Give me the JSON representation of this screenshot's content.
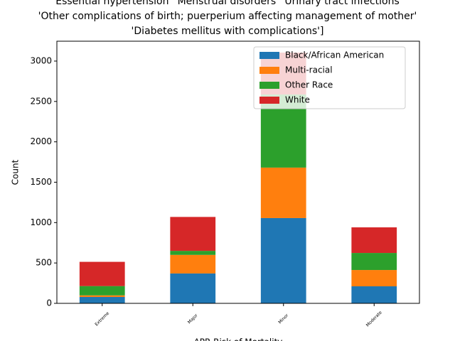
{
  "chart_data": {
    "type": "stacked_bar",
    "title": [
      "'Essential hypertension' 'Menstrual disorders' 'Urinary tract infections'",
      "'Other complications of birth; puerperium affecting management of mother'",
      "'Diabetes mellitus with complications']"
    ],
    "xlabel": "APR Risk of Mortality",
    "ylabel": "Count",
    "categories": [
      "Extreme",
      "Major",
      "Minor",
      "Moderate"
    ],
    "series": [
      {
        "name": "Black/African American",
        "color": "#1f77b4",
        "values": [
          79,
          370,
          1056,
          211
        ]
      },
      {
        "name": "Multi-racial",
        "color": "#ff7f0e",
        "values": [
          20,
          230,
          625,
          202
        ]
      },
      {
        "name": "Other Race",
        "color": "#2ca02c",
        "values": [
          115,
          50,
          905,
          211
        ]
      },
      {
        "name": "White",
        "color": "#d62728",
        "values": [
          300,
          420,
          519,
          317
        ]
      }
    ],
    "ylim": [
      0,
      3246
    ],
    "yticks": [
      0,
      500,
      1000,
      1500,
      2000,
      2500,
      3000
    ],
    "legend": "upper right"
  }
}
